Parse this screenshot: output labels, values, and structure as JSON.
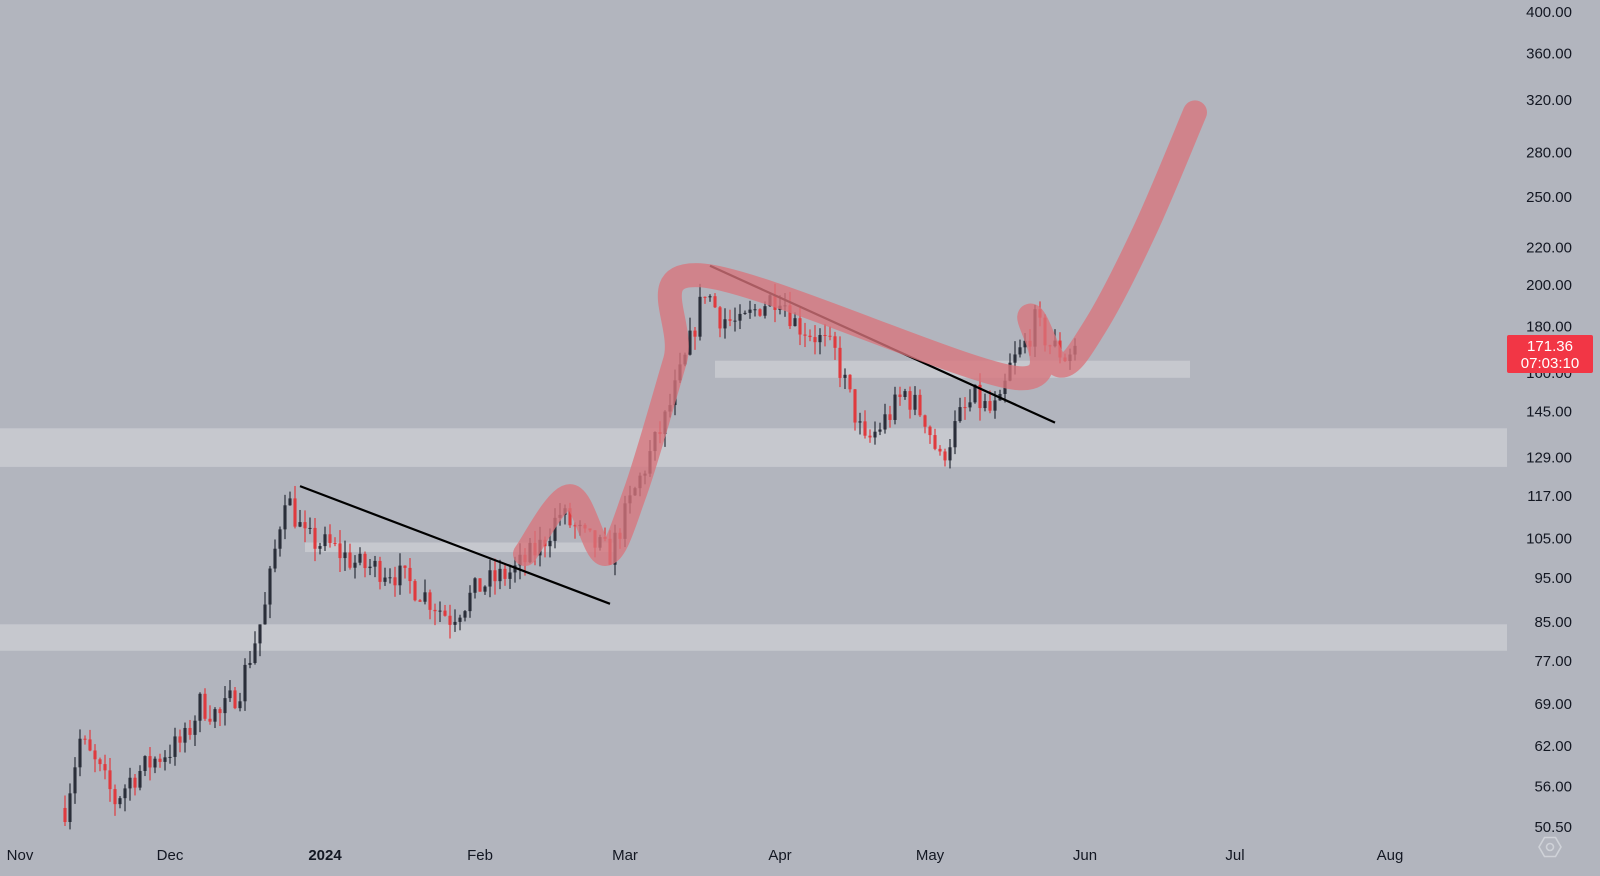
{
  "colors": {
    "background": "#b2b5be",
    "bull": "#2a2e39",
    "bear": "#e03a3e",
    "zone": "#c9cbd1",
    "trendline": "#000000",
    "path": "#d9747c",
    "price_tag": "#f23645",
    "axis_text": "#131722"
  },
  "chart_data": {
    "type": "candlestick",
    "y_scale": "log",
    "ylim": [
      48,
      410
    ],
    "y_ticks": [
      "400.00",
      "360.00",
      "320.00",
      "280.00",
      "250.00",
      "220.00",
      "200.00",
      "180.00",
      "160.00",
      "145.00",
      "129.00",
      "117.00",
      "105.00",
      "95.00",
      "85.00",
      "77.00",
      "69.00",
      "62.00",
      "56.00",
      "50.50"
    ],
    "x_ticks": [
      {
        "label": "Nov",
        "date": "2023-11-01",
        "bold": false
      },
      {
        "label": "Dec",
        "date": "2023-12-01",
        "bold": false
      },
      {
        "label": "2024",
        "date": "2024-01-01",
        "bold": true
      },
      {
        "label": "Feb",
        "date": "2024-02-01",
        "bold": false
      },
      {
        "label": "Mar",
        "date": "2024-03-01",
        "bold": false
      },
      {
        "label": "Apr",
        "date": "2024-04-01",
        "bold": false
      },
      {
        "label": "May",
        "date": "2024-05-01",
        "bold": false
      },
      {
        "label": "Jun",
        "date": "2024-06-01",
        "bold": false
      },
      {
        "label": "Jul",
        "date": "2024-07-01",
        "bold": false
      },
      {
        "label": "Aug",
        "date": "2024-08-01",
        "bold": false
      }
    ],
    "last_price": "171.36",
    "countdown": "07:03:10",
    "close_path": [
      [
        "2023-11-10",
        53
      ],
      [
        "2023-11-13",
        63
      ],
      [
        "2023-11-17",
        58
      ],
      [
        "2023-11-20",
        54
      ],
      [
        "2023-11-23",
        57
      ],
      [
        "2023-11-28",
        60
      ],
      [
        "2023-12-04",
        63
      ],
      [
        "2023-12-07",
        69
      ],
      [
        "2023-12-11",
        67
      ],
      [
        "2023-12-15",
        72
      ],
      [
        "2023-12-20",
        88
      ],
      [
        "2023-12-24",
        118
      ],
      [
        "2023-12-28",
        105
      ],
      [
        "2024-01-02",
        103
      ],
      [
        "2024-01-08",
        98
      ],
      [
        "2024-01-14",
        97
      ],
      [
        "2024-01-20",
        92
      ],
      [
        "2024-01-26",
        86
      ],
      [
        "2024-02-01",
        93
      ],
      [
        "2024-02-08",
        97
      ],
      [
        "2024-02-13",
        103
      ],
      [
        "2024-02-17",
        112
      ],
      [
        "2024-02-22",
        105
      ],
      [
        "2024-02-27",
        101
      ],
      [
        "2024-03-02",
        115
      ],
      [
        "2024-03-06",
        130
      ],
      [
        "2024-03-09",
        142
      ],
      [
        "2024-03-13",
        165
      ],
      [
        "2024-03-17",
        198
      ],
      [
        "2024-03-20",
        185
      ],
      [
        "2024-03-24",
        180
      ],
      [
        "2024-03-28",
        190
      ],
      [
        "2024-04-01",
        196
      ],
      [
        "2024-04-04",
        182
      ],
      [
        "2024-04-08",
        176
      ],
      [
        "2024-04-12",
        168
      ],
      [
        "2024-04-15",
        150
      ],
      [
        "2024-04-18",
        133
      ],
      [
        "2024-04-22",
        142
      ],
      [
        "2024-04-26",
        152
      ],
      [
        "2024-04-30",
        143
      ],
      [
        "2024-05-03",
        128
      ],
      [
        "2024-05-07",
        143
      ],
      [
        "2024-05-10",
        150
      ],
      [
        "2024-05-13",
        145
      ],
      [
        "2024-05-15",
        147
      ],
      [
        "2024-05-17",
        162
      ],
      [
        "2024-05-20",
        172
      ],
      [
        "2024-05-22",
        182
      ],
      [
        "2024-05-25",
        172
      ],
      [
        "2024-05-28",
        167
      ],
      [
        "2024-05-30",
        171.36
      ]
    ],
    "zones": [
      {
        "from": 126,
        "to": 139,
        "start": "2023-10-20",
        "end": "2024-09-01"
      },
      {
        "from": 79,
        "to": 84.5,
        "start": "2023-10-20",
        "end": "2024-09-01"
      },
      {
        "from": 101.5,
        "to": 104,
        "start": "2023-12-28",
        "end": "2024-02-28"
      },
      {
        "from": 158,
        "to": 165,
        "start": "2024-03-19",
        "end": "2024-06-22"
      }
    ],
    "trendlines": [
      {
        "p1": [
          "2023-12-27",
          120
        ],
        "p2": [
          "2024-02-27",
          89
        ]
      },
      {
        "p1": [
          "2024-03-18",
          210
        ],
        "p2": [
          "2024-05-26",
          141
        ]
      }
    ],
    "projection_path": [
      [
        "2024-02-10",
        101
      ],
      [
        "2024-02-19",
        117
      ],
      [
        "2024-02-26",
        101
      ],
      [
        "2024-03-03",
        118
      ],
      [
        "2024-03-11",
        165
      ],
      [
        "2024-03-16",
        205
      ],
      [
        "2024-05-18",
        158
      ],
      [
        "2024-05-21",
        185
      ],
      [
        "2024-05-27",
        163
      ],
      [
        "2024-06-03",
        180
      ],
      [
        "2024-06-13",
        230
      ],
      [
        "2024-06-23",
        310
      ]
    ]
  }
}
